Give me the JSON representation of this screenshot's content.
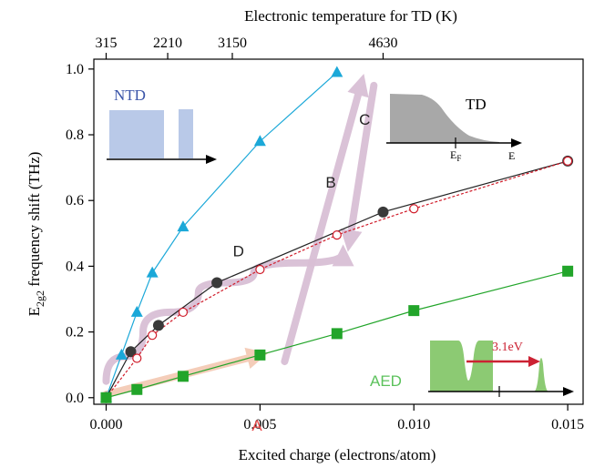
{
  "chart_data": {
    "type": "line",
    "top_axis": {
      "label": "Electronic temperature for TD (K)",
      "ticks": [
        {
          "label": "315",
          "x": 0.0
        },
        {
          "label": "2210",
          "x": 0.002
        },
        {
          "label": "3150",
          "x": 0.0041
        },
        {
          "label": "4630",
          "x": 0.009
        }
      ]
    },
    "xlabel": "Excited charge (electrons/atom)",
    "ylabel_main": "E",
    "ylabel_sub": "2g2",
    "ylabel_rest": " frequency shift (THz)",
    "xlim": [
      -0.0004,
      0.0155
    ],
    "ylim": [
      -0.02,
      1.03
    ],
    "x_ticks": [
      {
        "label": "0.000",
        "v": 0.0
      },
      {
        "label": "0.005",
        "v": 0.005
      },
      {
        "label": "0.010",
        "v": 0.01
      },
      {
        "label": "0.015",
        "v": 0.015
      }
    ],
    "y_ticks": [
      {
        "label": "0.0",
        "v": 0.0
      },
      {
        "label": "0.2",
        "v": 0.2
      },
      {
        "label": "0.4",
        "v": 0.4
      },
      {
        "label": "0.6",
        "v": 0.6
      },
      {
        "label": "0.8",
        "v": 0.8
      },
      {
        "label": "1.0",
        "v": 1.0
      }
    ],
    "series": [
      {
        "key": "ntd",
        "color": "#1ba8d8",
        "marker": "triangle",
        "x": [
          0.0,
          0.0005,
          0.001,
          0.0015,
          0.0025,
          0.005,
          0.0075
        ],
        "y": [
          0.0,
          0.13,
          0.26,
          0.38,
          0.52,
          0.78,
          0.99
        ]
      },
      {
        "key": "td_filled",
        "color": "#222222",
        "marker": "filled-circle",
        "x": [
          0.0,
          0.0008,
          0.0017,
          0.0036,
          0.009,
          0.015
        ],
        "y": [
          0.0,
          0.14,
          0.22,
          0.35,
          0.565,
          0.72
        ]
      },
      {
        "key": "td_open",
        "color": "#d01c2a",
        "marker": "open-circle",
        "dashed": true,
        "x": [
          0.0,
          0.001,
          0.0015,
          0.0025,
          0.005,
          0.0075,
          0.01,
          0.015
        ],
        "y": [
          0.0,
          0.12,
          0.19,
          0.26,
          0.39,
          0.495,
          0.575,
          0.72
        ]
      },
      {
        "key": "aed",
        "color": "#22a52a",
        "marker": "square",
        "x": [
          0.0,
          0.001,
          0.0025,
          0.005,
          0.0075,
          0.01,
          0.015
        ],
        "y": [
          0.0,
          0.025,
          0.065,
          0.13,
          0.195,
          0.265,
          0.385
        ]
      }
    ],
    "annotations": [
      {
        "text": "A",
        "color": "#e84a4a",
        "x": 0.0049,
        "y": -0.1
      },
      {
        "text": "B",
        "color": "#222222",
        "x": 0.0073,
        "y": 0.64
      },
      {
        "text": "C",
        "color": "#222222",
        "x": 0.0084,
        "y": 0.83
      },
      {
        "text": "D",
        "color": "#222222",
        "x": 0.0043,
        "y": 0.43
      }
    ],
    "pathway_arrows": [
      {
        "label": "A",
        "color": "#f4cbb6",
        "points": [
          [
            0.0,
            0.01
          ],
          [
            0.005,
            0.13
          ]
        ]
      },
      {
        "label": "B",
        "color": "#d9bfd5",
        "points": [
          [
            0.0058,
            0.11
          ],
          [
            0.0083,
            0.96
          ]
        ]
      },
      {
        "label": "C",
        "color": "#d9bfd5",
        "points": [
          [
            0.0087,
            0.95
          ],
          [
            0.0079,
            0.47
          ]
        ]
      },
      {
        "label": "D",
        "color": "#d9bfd5",
        "points": [
          [
            0.0,
            0.05
          ],
          [
            0.0012,
            0.2
          ],
          [
            0.003,
            0.32
          ],
          [
            0.0048,
            0.38
          ],
          [
            0.0077,
            0.44
          ]
        ]
      }
    ],
    "insets": {
      "ntd": {
        "label": "NTD",
        "color": "#3a54a8",
        "fill": "#b9c9e8"
      },
      "td": {
        "label": "TD",
        "fill": "#a8a8a8",
        "axis_label": "E",
        "fermi_main": "E",
        "fermi_sub": "F"
      },
      "aed": {
        "label": "AED",
        "color": "#5cc25c",
        "fill": "#8cca73",
        "arrow_label": "3.1eV",
        "arrow_color": "#cc2233"
      }
    }
  }
}
